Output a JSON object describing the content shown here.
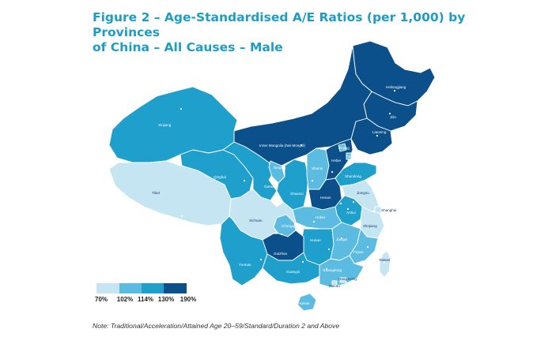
{
  "figure": {
    "title_line1": "Figure 2 – Age-Standardised A/E Ratios (per 1,000) by Provinces",
    "title_line2": "of China – All Causes – Male"
  },
  "legend": {
    "ticks": [
      "70%",
      "102%",
      "114%",
      "130%",
      "190%"
    ],
    "colors": [
      "#c5e5f3",
      "#5bbbe0",
      "#1f9fcc",
      "#0b508a"
    ]
  },
  "colors": {
    "tier1": "#c5e5f3",
    "tier2": "#5bbbe0",
    "tier3": "#1f9fcc",
    "tier4": "#0b508a",
    "border": "#ffffff",
    "title": "#1d9dc6"
  },
  "provinces": {
    "heilongjiang": "Heilongjiang",
    "jilin": "Jilin",
    "liaoning": "Liaoning",
    "inner_mongolia": "Inner Mongolia (Nei Mongol)",
    "xinjiang": "Xinjiang",
    "tibet": "Tibet",
    "qinghai": "Qinghai",
    "gansu": "Gansu",
    "ningxia": "Ningxia",
    "shaanxi": "Shaanxi",
    "shanxi": "Shanxi",
    "hebei": "Hebei",
    "beijing": "Beijing",
    "tianjin": "Tianjin",
    "shandong": "Shandong",
    "henan": "Henan",
    "jiangsu": "Jiangsu",
    "anhui": "Anhui",
    "shanghai": "Shanghai",
    "hubei": "Hubei",
    "zhejiang": "Zhejiang",
    "sichuan": "Sichuan",
    "chongqing": "Chongqing",
    "hunan": "Hunan",
    "jiangxi": "Jiangxi",
    "fujian": "Fujian",
    "guizhou": "Guizhou",
    "yunnan": "Yunnan",
    "guangxi": "Guangxi",
    "guangdong": "Guangdong",
    "hong_kong": "Hong Kong",
    "macau": "Macau",
    "hainan": "Hainan",
    "taiwan": "Taiwan"
  },
  "note": "Note: Traditional/Acceleration/Attained Age 20–59/Standard/Duration 2 and Above"
}
